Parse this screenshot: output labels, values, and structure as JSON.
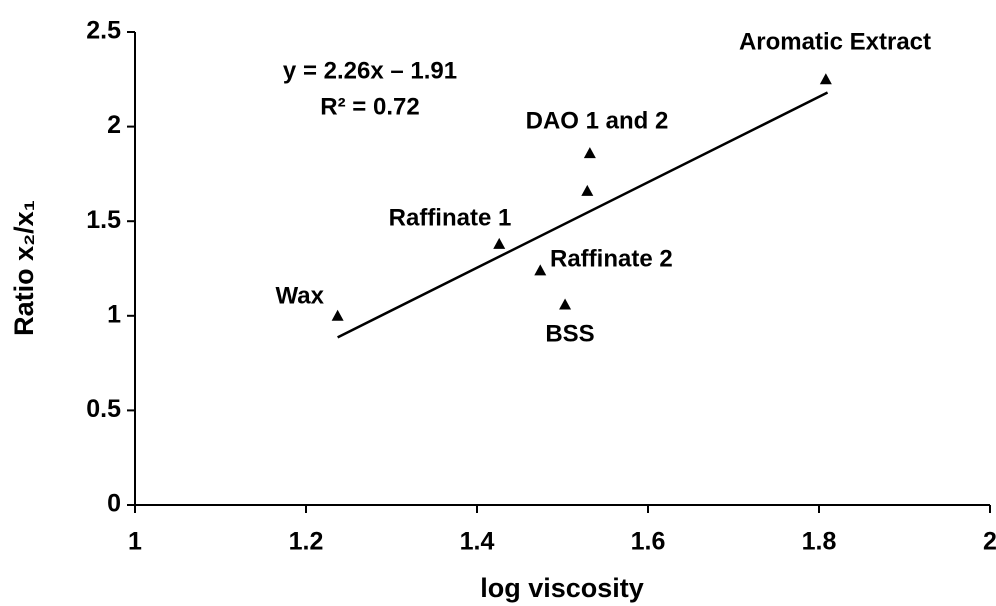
{
  "chart_data": {
    "type": "scatter",
    "x_label": "log viscosity",
    "y_label": "Ratio x₂/x₁",
    "series": [
      {
        "name": "Samples",
        "color": "#000000",
        "x": [
          1.237,
          1.426,
          1.474,
          1.503,
          1.529,
          1.532,
          1.808
        ],
        "values": [
          1.0,
          1.38,
          1.24,
          1.06,
          1.66,
          1.86,
          2.25
        ]
      }
    ],
    "trendline": {
      "color": "#000000",
      "x": [
        1.237,
        1.81
      ],
      "values": [
        0.886,
        2.18
      ]
    },
    "annotations": [
      "y = 2.26x – 1.91",
      "R² = 0.72",
      "Wax",
      "Raffinate 1",
      "Raffinate 2",
      "BSS",
      "DAO 1 and 2",
      "Aromatic Extract"
    ],
    "xlim": [
      1,
      2
    ],
    "xticks": [
      1,
      1.2,
      1.4,
      1.6,
      1.8,
      2
    ],
    "ylim": [
      0,
      2.5
    ],
    "yticks": [
      0,
      0.5,
      1,
      1.5,
      2,
      2.5
    ],
    "grid": false
  }
}
